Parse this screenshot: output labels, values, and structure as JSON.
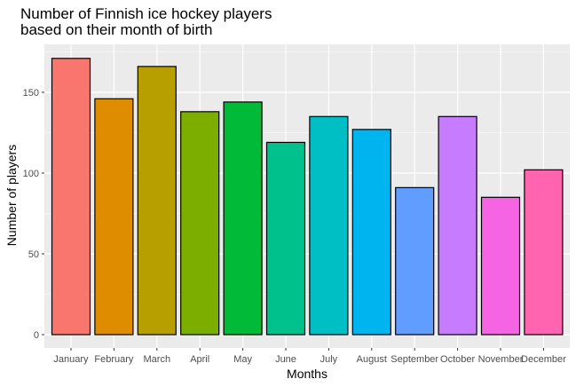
{
  "chart_data": {
    "type": "bar",
    "title_lines": [
      "Number of Finnish ice hockey players",
      "based on their month of birth"
    ],
    "xlabel": "Months",
    "ylabel": "Number of players",
    "categories": [
      "January",
      "February",
      "March",
      "April",
      "May",
      "June",
      "July",
      "August",
      "September",
      "October",
      "November",
      "December"
    ],
    "values": [
      171,
      146,
      166,
      138,
      144,
      119,
      135,
      127,
      91,
      135,
      85,
      102
    ],
    "colors": [
      "#F8766D",
      "#DE8C00",
      "#B79F00",
      "#7CAE00",
      "#00BA38",
      "#00C08B",
      "#00BFC4",
      "#00B4F0",
      "#619CFF",
      "#C77CFF",
      "#F564E3",
      "#FF64B0"
    ],
    "ylim": [
      0,
      180
    ],
    "yticks": [
      0,
      50,
      100,
      150
    ],
    "panel_background": "#EBEBEB",
    "grid_color": "#FFFFFF",
    "bar_outline": "#000000",
    "grid": true,
    "legend": "none"
  }
}
